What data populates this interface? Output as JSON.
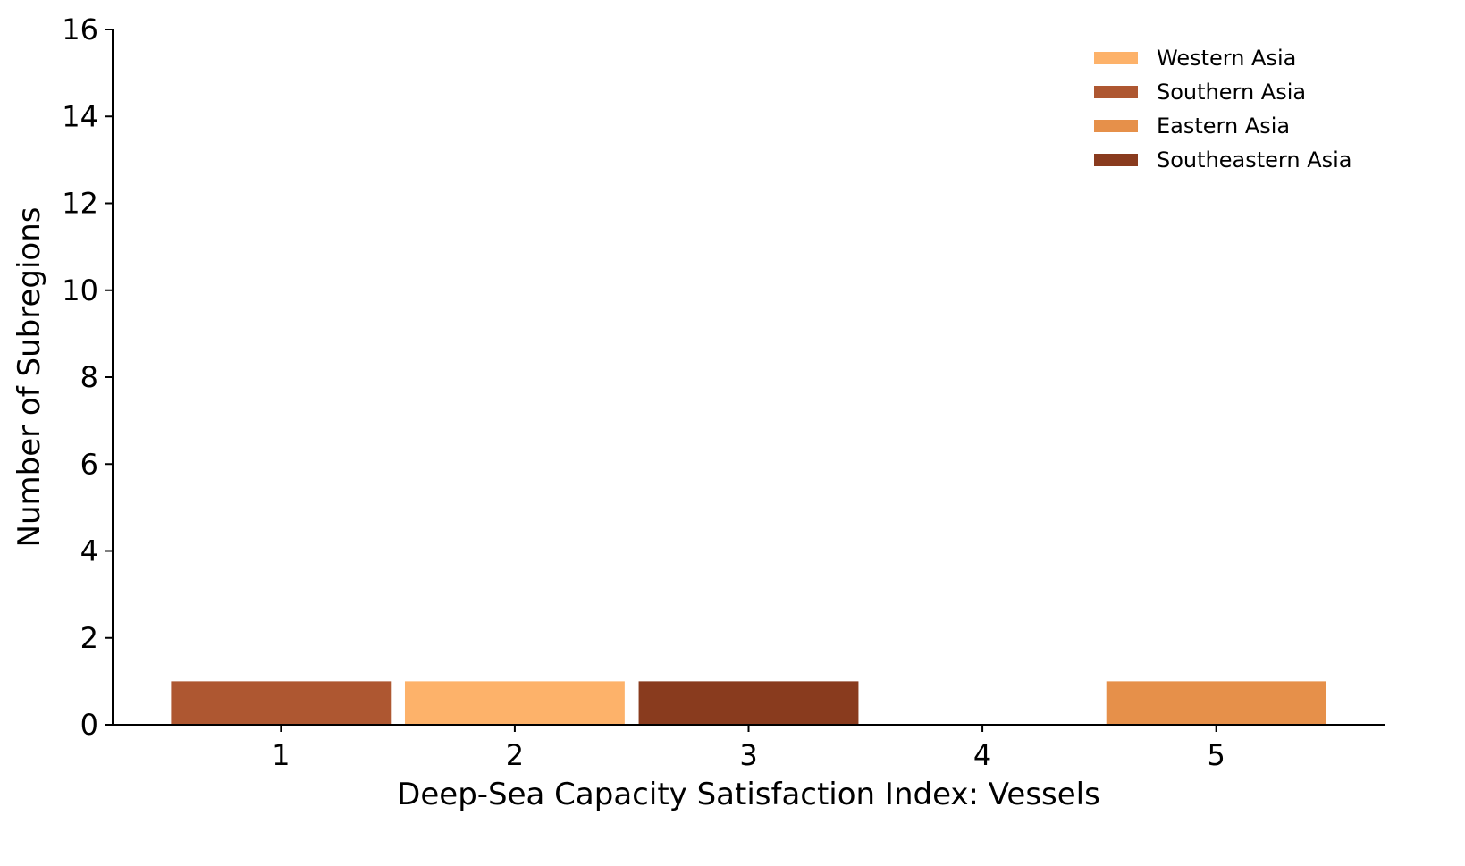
{
  "chart_data": {
    "type": "bar",
    "xlabel": "Deep-Sea Capacity Satisfaction Index: Vessels",
    "ylabel": "Number of Subregions",
    "ylim": [
      0,
      16
    ],
    "xlim": [
      0.28,
      5.72
    ],
    "x_ticks": [
      1,
      2,
      3,
      4,
      5
    ],
    "y_ticks": [
      0,
      2,
      4,
      6,
      8,
      10,
      12,
      14,
      16
    ],
    "bar_width": 0.94,
    "grid": false,
    "legend_position": "top-right",
    "series": [
      {
        "name": "Western Asia",
        "color": "#FDB26A",
        "points": [
          {
            "x": 2,
            "y": 1
          }
        ]
      },
      {
        "name": "Southern Asia",
        "color": "#AE5731",
        "points": [
          {
            "x": 1,
            "y": 1
          }
        ]
      },
      {
        "name": "Eastern Asia",
        "color": "#E6904A",
        "points": [
          {
            "x": 5,
            "y": 1
          }
        ]
      },
      {
        "name": "Southeastern Asia",
        "color": "#893B1E",
        "points": [
          {
            "x": 3,
            "y": 1
          }
        ]
      }
    ]
  }
}
